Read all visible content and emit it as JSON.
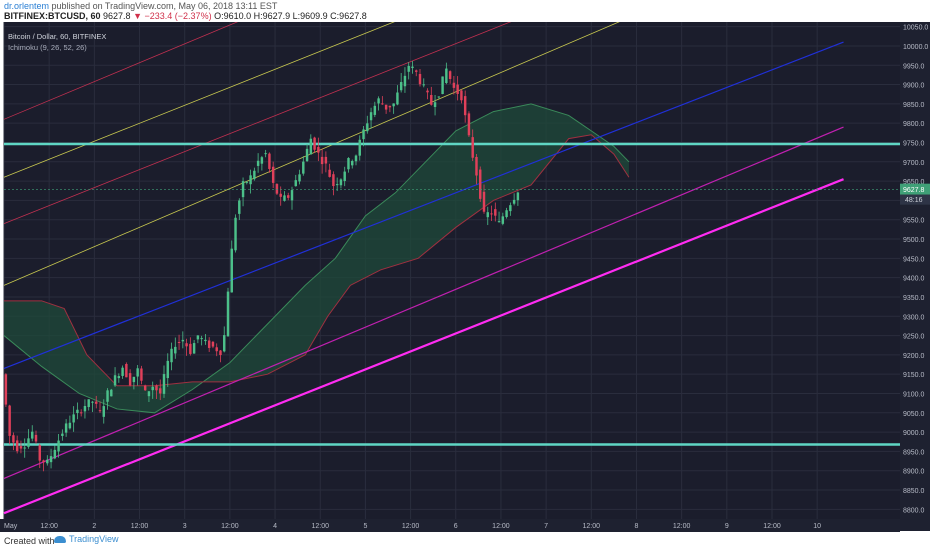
{
  "header": {
    "author": "dr.orlentem",
    "published": "published on TradingView.com, May 06, 2018 13:11 EST",
    "symbol": "BITFINEX:BTCUSD, 60",
    "last": "9627.8",
    "change": "−233.4 (−2.37%)",
    "ohlc": "O:9610.0 H:9627.9 L:9609.9 C:9627.8"
  },
  "legend": {
    "instrument": "Bitcoin / Dollar, 60, BITFINEX",
    "indicator": "Ichimoku (9, 26, 52, 26)"
  },
  "footer": {
    "created_with": "Created with",
    "brand": "TradingView"
  },
  "colors": {
    "background": "#1b1d2c",
    "up": "#4cc08a",
    "down": "#e0405a",
    "cyan_line": "#5fd6c4",
    "magenta_line": "#ff2cf2",
    "blue_channel": "#2030d8",
    "red_channel": "#c03050",
    "yellow_channel": "#c8c850"
  },
  "chart_data": {
    "type": "candlestick",
    "symbol": "BITFINEX:BTCUSD",
    "interval": "60",
    "y_range": [
      8775,
      10062
    ],
    "y_ticks": [
      8800,
      8850,
      8900,
      8950,
      9000,
      9050,
      9100,
      9150,
      9200,
      9250,
      9300,
      9350,
      9400,
      9450,
      9500,
      9550,
      9600,
      9650,
      9700,
      9750,
      9800,
      9850,
      9900,
      9950,
      10000,
      10050
    ],
    "x_range_hours": [
      0,
      238
    ],
    "x_ticks": [
      {
        "t": 0,
        "label": "May"
      },
      {
        "t": 12,
        "label": "12:00"
      },
      {
        "t": 24,
        "label": "2"
      },
      {
        "t": 36,
        "label": "12:00"
      },
      {
        "t": 48,
        "label": "3"
      },
      {
        "t": 60,
        "label": "12:00"
      },
      {
        "t": 72,
        "label": "4"
      },
      {
        "t": 84,
        "label": "12:00"
      },
      {
        "t": 96,
        "label": "5"
      },
      {
        "t": 108,
        "label": "12:00"
      },
      {
        "t": 120,
        "label": "6"
      },
      {
        "t": 132,
        "label": "12:00"
      },
      {
        "t": 144,
        "label": "7"
      },
      {
        "t": 156,
        "label": "12:00"
      },
      {
        "t": 168,
        "label": "8"
      },
      {
        "t": 180,
        "label": "12:00"
      },
      {
        "t": 192,
        "label": "9"
      },
      {
        "t": 204,
        "label": "12:00"
      },
      {
        "t": 216,
        "label": "10"
      }
    ],
    "price_label": "9627.8",
    "countdown_label": "48:16",
    "price_path": [
      [
        0,
        9150
      ],
      [
        2,
        8990
      ],
      [
        4,
        8960
      ],
      [
        6,
        8970
      ],
      [
        8,
        9000
      ],
      [
        10,
        8930
      ],
      [
        12,
        8920
      ],
      [
        14,
        8960
      ],
      [
        16,
        9000
      ],
      [
        18,
        9030
      ],
      [
        20,
        9050
      ],
      [
        22,
        9070
      ],
      [
        24,
        9080
      ],
      [
        26,
        9050
      ],
      [
        28,
        9100
      ],
      [
        30,
        9140
      ],
      [
        32,
        9170
      ],
      [
        34,
        9130
      ],
      [
        36,
        9160
      ],
      [
        38,
        9100
      ],
      [
        40,
        9120
      ],
      [
        42,
        9100
      ],
      [
        44,
        9180
      ],
      [
        46,
        9230
      ],
      [
        48,
        9240
      ],
      [
        50,
        9210
      ],
      [
        52,
        9250
      ],
      [
        54,
        9230
      ],
      [
        56,
        9220
      ],
      [
        58,
        9210
      ],
      [
        59,
        9250
      ],
      [
        60,
        9370
      ],
      [
        61,
        9470
      ],
      [
        62,
        9560
      ],
      [
        64,
        9640
      ],
      [
        66,
        9660
      ],
      [
        68,
        9700
      ],
      [
        70,
        9720
      ],
      [
        72,
        9640
      ],
      [
        74,
        9600
      ],
      [
        76,
        9610
      ],
      [
        78,
        9650
      ],
      [
        80,
        9700
      ],
      [
        82,
        9760
      ],
      [
        84,
        9720
      ],
      [
        86,
        9690
      ],
      [
        88,
        9640
      ],
      [
        90,
        9660
      ],
      [
        92,
        9700
      ],
      [
        94,
        9720
      ],
      [
        96,
        9780
      ],
      [
        98,
        9830
      ],
      [
        100,
        9860
      ],
      [
        102,
        9840
      ],
      [
        104,
        9850
      ],
      [
        106,
        9900
      ],
      [
        108,
        9950
      ],
      [
        110,
        9930
      ],
      [
        112,
        9890
      ],
      [
        114,
        9850
      ],
      [
        116,
        9880
      ],
      [
        118,
        9940
      ],
      [
        120,
        9890
      ],
      [
        122,
        9870
      ],
      [
        124,
        9760
      ],
      [
        126,
        9670
      ],
      [
        128,
        9560
      ],
      [
        130,
        9570
      ],
      [
        132,
        9540
      ],
      [
        134,
        9580
      ],
      [
        136,
        9610
      ],
      [
        137,
        9628
      ]
    ],
    "horizontal_lines": [
      {
        "price": 9746,
        "color": "#5fd6c4"
      },
      {
        "price": 8968,
        "color": "#5fd6c4"
      }
    ],
    "trend_lines": [
      {
        "name": "",
        "from": [
          0,
          8790
        ],
        "to": [
          223,
          9655
        ],
        "color": "#ff2cf2",
        "width": 2.2
      },
      {
        "name": "",
        "from": [
          0,
          8880
        ],
        "to": [
          223,
          9790
        ],
        "color": "#c020b0",
        "width": 1.2
      },
      {
        "name": "",
        "from": [
          0,
          9165
        ],
        "to": [
          223,
          10010
        ],
        "color": "#2030d8",
        "width": 1.2
      },
      {
        "name": "",
        "from": [
          0,
          9380
        ],
        "to": [
          170,
          10090
        ],
        "color": "#c8c850",
        "width": 0.8
      },
      {
        "name": "",
        "from": [
          0,
          9660
        ],
        "to": [
          170,
          10320
        ],
        "color": "#c8c850",
        "width": 0.8
      },
      {
        "name": "",
        "from": [
          0,
          9540
        ],
        "to": [
          170,
          10200
        ],
        "color": "#c03050",
        "width": 0.8
      },
      {
        "name": "",
        "from": [
          0,
          9810
        ],
        "to": [
          140,
          10380
        ],
        "color": "#c03050",
        "width": 0.8
      }
    ],
    "cloud": {
      "senkou_a": [
        [
          0,
          9250
        ],
        [
          10,
          9170
        ],
        [
          20,
          9100
        ],
        [
          30,
          9060
        ],
        [
          40,
          9050
        ],
        [
          50,
          9110
        ],
        [
          60,
          9180
        ],
        [
          70,
          9280
        ],
        [
          80,
          9380
        ],
        [
          88,
          9450
        ],
        [
          96,
          9560
        ],
        [
          104,
          9620
        ],
        [
          112,
          9700
        ],
        [
          120,
          9780
        ],
        [
          130,
          9830
        ],
        [
          140,
          9850
        ],
        [
          150,
          9820
        ],
        [
          156,
          9780
        ],
        [
          162,
          9740
        ],
        [
          166,
          9700
        ]
      ],
      "senkou_b": [
        [
          0,
          9340
        ],
        [
          10,
          9340
        ],
        [
          16,
          9320
        ],
        [
          22,
          9200
        ],
        [
          30,
          9120
        ],
        [
          40,
          9120
        ],
        [
          50,
          9130
        ],
        [
          60,
          9130
        ],
        [
          70,
          9150
        ],
        [
          80,
          9200
        ],
        [
          86,
          9300
        ],
        [
          92,
          9380
        ],
        [
          100,
          9420
        ],
        [
          110,
          9450
        ],
        [
          120,
          9530
        ],
        [
          130,
          9600
        ],
        [
          140,
          9640
        ],
        [
          150,
          9760
        ],
        [
          156,
          9770
        ],
        [
          162,
          9720
        ],
        [
          166,
          9660
        ]
      ],
      "bull_color": "#1f4a3a",
      "bear_color": "#5a1f2e"
    }
  }
}
